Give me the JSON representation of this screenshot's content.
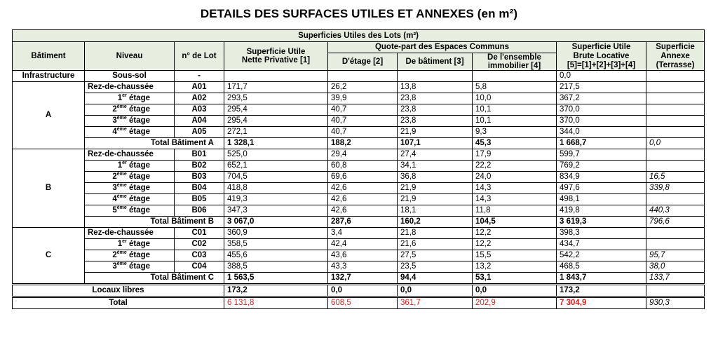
{
  "title": "DETAILS DES SURFACES UTILES ET ANNEXES (en m²)",
  "header": {
    "group": "Superficies Utiles des Lots (m²)",
    "batiment": "Bâtiment",
    "niveau": "Niveau",
    "lot": "n° de Lot",
    "nette_l1": "Superficie Utile",
    "nette_l2": "Nette Privative [1]",
    "quote": "Quote-part des Espaces Communs",
    "etage": "D'étage [2]",
    "bat": "De bâtiment [3]",
    "ens_l1": "De l'ensemble",
    "ens_l2": "immobilier [4]",
    "brute_l1": "Superficie Utile",
    "brute_l2": "Brute Locative",
    "brute_l3": "[5]=[1]+[2]+[3]+[4]",
    "annexe_l1": "Superficie",
    "annexe_l2": "Annexe",
    "annexe_l3": "(Terrasse)"
  },
  "infra": {
    "bat": "Infrastructure",
    "niveau": "Sous-sol",
    "lot": "-",
    "brute": "0,0"
  },
  "buildings": [
    {
      "name": "A",
      "rows": [
        {
          "niv": "Rez-de-chaussée",
          "sup": "",
          "lot": "A01",
          "nette": "171,7",
          "etage": "26,2",
          "bat": "13,8",
          "ens": "5,8",
          "brute": "217,5",
          "annexe": ""
        },
        {
          "niv": "1",
          "sup": "er",
          "niv2": " étage",
          "lot": "A02",
          "nette": "293,5",
          "etage": "39,9",
          "bat": "23,8",
          "ens": "10,0",
          "brute": "367,2",
          "annexe": ""
        },
        {
          "niv": "2",
          "sup": "ème",
          "niv2": " étage",
          "lot": "A03",
          "nette": "295,4",
          "etage": "40,7",
          "bat": "23,8",
          "ens": "10,1",
          "brute": "370,0",
          "annexe": ""
        },
        {
          "niv": "3",
          "sup": "ème",
          "niv2": " étage",
          "lot": "A04",
          "nette": "295,4",
          "etage": "40,7",
          "bat": "23,8",
          "ens": "10,1",
          "brute": "370,0",
          "annexe": ""
        },
        {
          "niv": "4",
          "sup": "ème",
          "niv2": " étage",
          "lot": "A05",
          "nette": "272,1",
          "etage": "40,7",
          "bat": "21,9",
          "ens": "9,3",
          "brute": "344,0",
          "annexe": ""
        }
      ],
      "total": {
        "label": "Total Bâtiment A",
        "nette": "1 328,1",
        "etage": "188,2",
        "bat": "107,1",
        "ens": "45,3",
        "brute": "1 668,7",
        "annexe": "0,0"
      }
    },
    {
      "name": "B",
      "rows": [
        {
          "niv": "Rez-de-chaussée",
          "sup": "",
          "lot": "B01",
          "nette": "525,0",
          "etage": "29,4",
          "bat": "27,4",
          "ens": "17,9",
          "brute": "599,7",
          "annexe": ""
        },
        {
          "niv": "1",
          "sup": "er",
          "niv2": " étage",
          "lot": "B02",
          "nette": "652,1",
          "etage": "60,8",
          "bat": "34,1",
          "ens": "22,2",
          "brute": "769,2",
          "annexe": ""
        },
        {
          "niv": "2",
          "sup": "ème",
          "niv2": " étage",
          "lot": "B03",
          "nette": "704,5",
          "etage": "69,6",
          "bat": "36,8",
          "ens": "24,0",
          "brute": "834,9",
          "annexe": "16,5"
        },
        {
          "niv": "3",
          "sup": "ème",
          "niv2": " étage",
          "lot": "B04",
          "nette": "418,8",
          "etage": "42,6",
          "bat": "21,9",
          "ens": "14,3",
          "brute": "497,6",
          "annexe": "339,8"
        },
        {
          "niv": "4",
          "sup": "ème",
          "niv2": " étage",
          "lot": "B05",
          "nette": "419,3",
          "etage": "42,6",
          "bat": "21,9",
          "ens": "14,3",
          "brute": "498,1",
          "annexe": ""
        },
        {
          "niv": "5",
          "sup": "ème",
          "niv2": " étage",
          "lot": "B06",
          "nette": "347,3",
          "etage": "42,6",
          "bat": "18,1",
          "ens": "11,8",
          "brute": "419,8",
          "annexe": "440,3"
        }
      ],
      "total": {
        "label": "Total Bâtiment B",
        "nette": "3 067,0",
        "etage": "287,6",
        "bat": "160,2",
        "ens": "104,5",
        "brute": "3 619,3",
        "annexe": "796,6"
      }
    },
    {
      "name": "C",
      "rows": [
        {
          "niv": "Rez-de-chaussée",
          "sup": "",
          "lot": "C01",
          "nette": "360,9",
          "etage": "3,4",
          "bat": "21,8",
          "ens": "12,2",
          "brute": "398,3",
          "annexe": ""
        },
        {
          "niv": "1",
          "sup": "er",
          "niv2": " étage",
          "lot": "C02",
          "nette": "358,5",
          "etage": "42,4",
          "bat": "21,6",
          "ens": "12,2",
          "brute": "434,7",
          "annexe": ""
        },
        {
          "niv": "2",
          "sup": "ème",
          "niv2": " étage",
          "lot": "C03",
          "nette": "455,6",
          "etage": "43,6",
          "bat": "27,5",
          "ens": "15,5",
          "brute": "542,2",
          "annexe": "95,7"
        },
        {
          "niv": "3",
          "sup": "ème",
          "niv2": " étage",
          "lot": "C04",
          "nette": "388,5",
          "etage": "43,3",
          "bat": "23,5",
          "ens": "13,2",
          "brute": "468,5",
          "annexe": "38,0"
        }
      ],
      "total": {
        "label": "Total Bâtiment C",
        "nette": "1 563,5",
        "etage": "132,7",
        "bat": "94,4",
        "ens": "53,1",
        "brute": "1 843,7",
        "annexe": "133,7"
      }
    }
  ],
  "locaux": {
    "label": "Locaux libres",
    "nette": "173,2",
    "etage": "0,0",
    "bat": "0,0",
    "ens": "0,0",
    "brute": "173,2"
  },
  "total": {
    "label": "Total",
    "nette": "6 131,8",
    "etage": "608,5",
    "bat": "361,7",
    "ens": "202,9",
    "brute": "7 304,9",
    "annexe": "930,3"
  },
  "colors": {
    "header_bg": "#e7eedf",
    "total_red": "#e02020"
  }
}
